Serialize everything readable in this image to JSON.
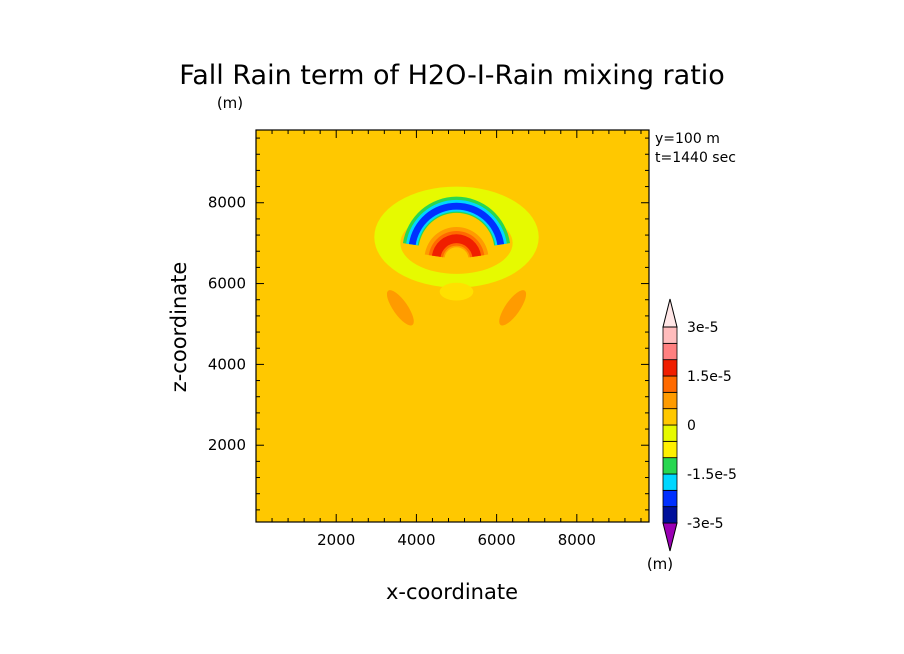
{
  "chart_data": {
    "type": "heatmap",
    "title": "Fall Rain term of H2O-I-Rain mixing ratio",
    "unit_label_top": "(m)",
    "xlabel": "x-coordinate",
    "ylabel": "z-coordinate",
    "xlim": [
      0,
      9800
    ],
    "ylim": [
      100,
      9800
    ],
    "x_ticks": [
      2000,
      4000,
      6000,
      8000
    ],
    "y_ticks": [
      2000,
      4000,
      6000,
      8000
    ],
    "x_tick_labels": [
      "2000",
      "4000",
      "6000",
      "8000"
    ],
    "y_tick_labels": [
      "2000",
      "4000",
      "6000",
      "8000"
    ],
    "annotations": [
      "y=100 m",
      "t=1440 sec"
    ],
    "colorbar": {
      "unit_label": "(m)",
      "levels": [
        -3e-05,
        -2.5e-05,
        -2e-05,
        -1.5e-05,
        -1e-05,
        -5e-06,
        0,
        5e-06,
        1e-05,
        1.5e-05,
        2e-05,
        2.5e-05,
        3e-05
      ],
      "labels": [
        "3e-5",
        "1.5e-5",
        "0",
        "-1.5e-5",
        "-3e-5"
      ],
      "colors": [
        "#9a00b4",
        "#00109a",
        "#0030ff",
        "#00d7ff",
        "#28d750",
        "#fff000",
        "#e6fa00",
        "#ffc800",
        "#ff9b00",
        "#ff6a00",
        "#f01e00",
        "#ff8080",
        "#ffbcbc",
        "#ffe6e6"
      ]
    },
    "background_value_color": "#ffc800",
    "features": [
      {
        "name": "upper positive halo",
        "cx": 5000,
        "cz": 7650,
        "r_inner": 1400,
        "r_outer": 2050,
        "color": "#e6fa00"
      },
      {
        "name": "negative arc outer",
        "cx": 5000,
        "cz": 6800,
        "r_inner": 950,
        "r_outer": 1350,
        "color": "#28d750"
      },
      {
        "name": "negative arc mid",
        "cx": 5000,
        "cz": 6800,
        "r_inner": 980,
        "r_outer": 1270,
        "color": "#00d7ff"
      },
      {
        "name": "negative arc core",
        "cx": 5000,
        "cz": 6800,
        "r_inner": 1030,
        "r_outer": 1200,
        "color": "#0030ff"
      },
      {
        "name": "positive arc outer",
        "cx": 5000,
        "cz": 6600,
        "r_inner": 300,
        "r_outer": 800,
        "color": "#ff9b00"
      },
      {
        "name": "positive arc mid",
        "cx": 5000,
        "cz": 6600,
        "r_inner": 340,
        "r_outer": 700,
        "color": "#ff6a00"
      },
      {
        "name": "positive arc core",
        "cx": 5000,
        "cz": 6600,
        "r_inner": 400,
        "r_outer": 620,
        "color": "#f01e00"
      }
    ]
  }
}
